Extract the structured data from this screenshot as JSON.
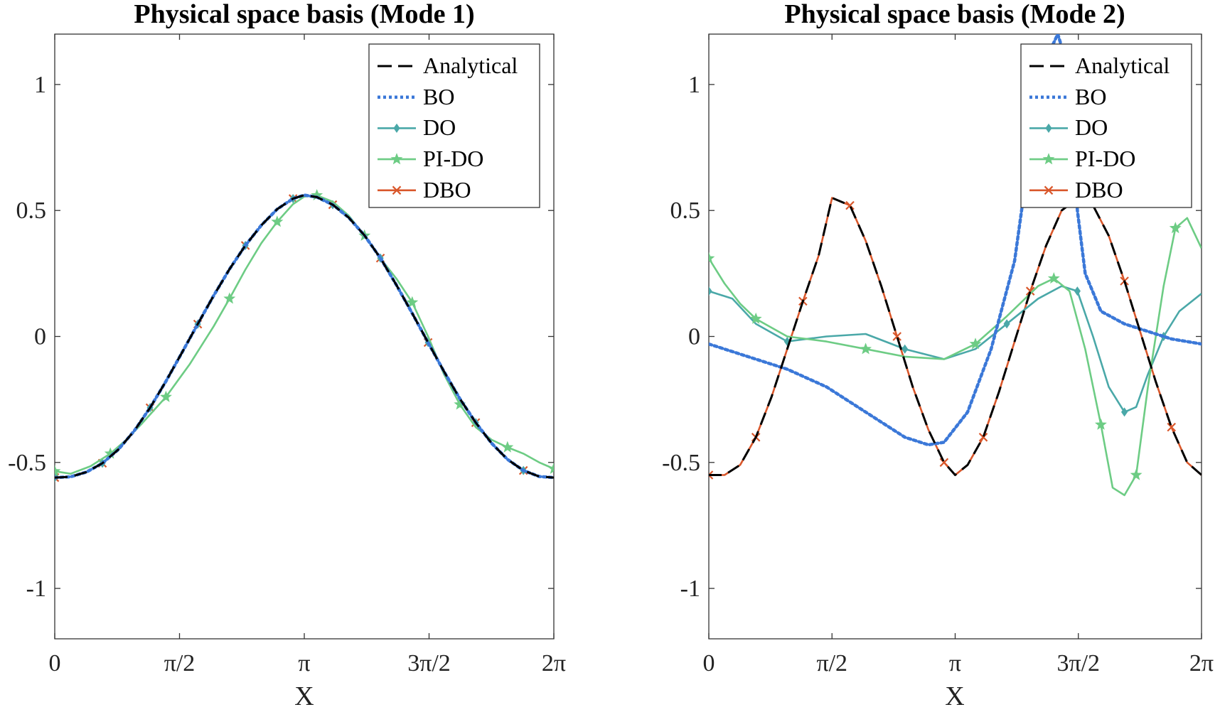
{
  "chart_data": [
    {
      "type": "line",
      "title": "Physical space basis (Mode 1)",
      "xlabel": "X",
      "ylabel": "",
      "xlim": [
        0,
        6.2832
      ],
      "ylim": [
        -1.2,
        1.2
      ],
      "xticks": [
        0,
        1.5708,
        3.1416,
        4.7124,
        6.2832
      ],
      "xtick_labels": [
        "0",
        "π/2",
        "π",
        "3π/2",
        "2π"
      ],
      "yticks": [
        -1,
        -0.5,
        0,
        0.5,
        1
      ],
      "ytick_labels": [
        "-1",
        "-0.5",
        "0",
        "0.5",
        "1"
      ],
      "legend_position": "top-right",
      "legend": [
        "Analytical",
        "BO",
        "DO",
        "PI-DO",
        "DBO"
      ],
      "series": [
        {
          "name": "Analytical",
          "color": "#000000",
          "style": "dashed",
          "marker": "none",
          "x": [
            0,
            0.2,
            0.4,
            0.6,
            0.8,
            1.0,
            1.2,
            1.4,
            1.6,
            1.8,
            2.0,
            2.2,
            2.4,
            2.6,
            2.8,
            3.0,
            3.1416,
            3.3,
            3.5,
            3.7,
            3.9,
            4.1,
            4.3,
            4.5,
            4.7,
            4.9,
            5.1,
            5.3,
            5.5,
            5.7,
            5.9,
            6.1,
            6.2832
          ],
          "y": [
            -0.56,
            -0.557,
            -0.538,
            -0.503,
            -0.449,
            -0.375,
            -0.283,
            -0.178,
            -0.065,
            0.049,
            0.162,
            0.267,
            0.361,
            0.441,
            0.505,
            0.547,
            0.561,
            0.553,
            0.523,
            0.472,
            0.401,
            0.311,
            0.205,
            0.092,
            -0.024,
            -0.139,
            -0.247,
            -0.342,
            -0.424,
            -0.488,
            -0.532,
            -0.556,
            -0.56
          ]
        },
        {
          "name": "BO",
          "color": "#3b78d8",
          "style": "dotted",
          "marker": "none",
          "x": [
            0,
            0.2,
            0.4,
            0.6,
            0.8,
            1.0,
            1.2,
            1.4,
            1.6,
            1.8,
            2.0,
            2.2,
            2.4,
            2.6,
            2.8,
            3.0,
            3.1416,
            3.3,
            3.5,
            3.7,
            3.9,
            4.1,
            4.3,
            4.5,
            4.7,
            4.9,
            5.1,
            5.3,
            5.5,
            5.7,
            5.9,
            6.1,
            6.2832
          ],
          "y": [
            -0.56,
            -0.557,
            -0.538,
            -0.503,
            -0.449,
            -0.375,
            -0.283,
            -0.178,
            -0.065,
            0.049,
            0.162,
            0.267,
            0.361,
            0.441,
            0.505,
            0.547,
            0.561,
            0.553,
            0.523,
            0.472,
            0.401,
            0.311,
            0.205,
            0.092,
            -0.024,
            -0.139,
            -0.247,
            -0.342,
            -0.424,
            -0.488,
            -0.532,
            -0.556,
            -0.56
          ]
        },
        {
          "name": "DO",
          "color": "#4aa8a8",
          "style": "solid",
          "marker": "diamond",
          "x": [
            0,
            0.2,
            0.4,
            0.6,
            0.8,
            1.0,
            1.2,
            1.4,
            1.6,
            1.8,
            2.0,
            2.2,
            2.4,
            2.6,
            2.8,
            3.0,
            3.1416,
            3.3,
            3.5,
            3.7,
            3.9,
            4.1,
            4.3,
            4.5,
            4.7,
            4.9,
            5.1,
            5.3,
            5.5,
            5.7,
            5.9,
            6.1,
            6.2832
          ],
          "y": [
            -0.56,
            -0.557,
            -0.538,
            -0.503,
            -0.449,
            -0.375,
            -0.283,
            -0.178,
            -0.065,
            0.049,
            0.162,
            0.267,
            0.361,
            0.441,
            0.505,
            0.547,
            0.561,
            0.553,
            0.523,
            0.472,
            0.401,
            0.311,
            0.205,
            0.092,
            -0.024,
            -0.139,
            -0.247,
            -0.342,
            -0.424,
            -0.488,
            -0.532,
            -0.556,
            -0.56
          ]
        },
        {
          "name": "PI-DO",
          "color": "#6dcc84",
          "style": "solid",
          "marker": "star",
          "x": [
            0,
            0.2,
            0.45,
            0.7,
            0.9,
            1.1,
            1.4,
            1.7,
            2.0,
            2.2,
            2.4,
            2.6,
            2.8,
            3.0,
            3.1416,
            3.3,
            3.5,
            3.7,
            3.9,
            4.1,
            4.3,
            4.5,
            4.7,
            4.9,
            5.1,
            5.3,
            5.5,
            5.7,
            5.9,
            6.1,
            6.2832
          ],
          "y": [
            -0.535,
            -0.545,
            -0.515,
            -0.465,
            -0.41,
            -0.345,
            -0.24,
            -0.11,
            0.04,
            0.15,
            0.265,
            0.37,
            0.455,
            0.525,
            0.555,
            0.56,
            0.535,
            0.48,
            0.4,
            0.31,
            0.23,
            0.135,
            0.0,
            -0.15,
            -0.27,
            -0.36,
            -0.41,
            -0.44,
            -0.465,
            -0.5,
            -0.525
          ]
        },
        {
          "name": "DBO",
          "color": "#d9572b",
          "style": "solid",
          "marker": "x",
          "x": [
            0,
            0.2,
            0.4,
            0.6,
            0.8,
            1.0,
            1.2,
            1.4,
            1.6,
            1.8,
            2.0,
            2.2,
            2.4,
            2.6,
            2.8,
            3.0,
            3.1416,
            3.3,
            3.5,
            3.7,
            3.9,
            4.1,
            4.3,
            4.5,
            4.7,
            4.9,
            5.1,
            5.3,
            5.5,
            5.7,
            5.9,
            6.1,
            6.2832
          ],
          "y": [
            -0.56,
            -0.557,
            -0.538,
            -0.503,
            -0.449,
            -0.375,
            -0.283,
            -0.178,
            -0.065,
            0.049,
            0.162,
            0.267,
            0.361,
            0.441,
            0.505,
            0.547,
            0.561,
            0.553,
            0.523,
            0.472,
            0.401,
            0.311,
            0.205,
            0.092,
            -0.024,
            -0.139,
            -0.247,
            -0.342,
            -0.424,
            -0.488,
            -0.532,
            -0.556,
            -0.56
          ]
        }
      ]
    },
    {
      "type": "line",
      "title": "Physical space basis (Mode 2)",
      "xlabel": "X",
      "ylabel": "",
      "xlim": [
        0,
        6.2832
      ],
      "ylim": [
        -1.2,
        1.2
      ],
      "xticks": [
        0,
        1.5708,
        3.1416,
        4.7124,
        6.2832
      ],
      "xtick_labels": [
        "0",
        "π/2",
        "π",
        "3π/2",
        "2π"
      ],
      "yticks": [
        -1,
        -0.5,
        0,
        0.5,
        1
      ],
      "ytick_labels": [
        "-1",
        "-0.5",
        "0",
        "0.5",
        "1"
      ],
      "legend_position": "top-right",
      "legend": [
        "Analytical",
        "BO",
        "DO",
        "PI-DO",
        "DBO"
      ],
      "series": [
        {
          "name": "Analytical",
          "color": "#000000",
          "style": "dashed",
          "marker": "none",
          "x": [
            0,
            0.2,
            0.4,
            0.6,
            0.8,
            1.0,
            1.2,
            1.4,
            1.5708,
            1.8,
            2.0,
            2.2,
            2.4,
            2.6,
            2.8,
            3.0,
            3.1416,
            3.3,
            3.5,
            3.7,
            3.9,
            4.1,
            4.3,
            4.5,
            4.7124,
            4.9,
            5.1,
            5.3,
            5.5,
            5.7,
            5.9,
            6.1,
            6.2832
          ],
          "y": [
            -0.55,
            -0.55,
            -0.51,
            -0.4,
            -0.24,
            -0.05,
            0.14,
            0.32,
            0.55,
            0.52,
            0.38,
            0.2,
            0.0,
            -0.2,
            -0.37,
            -0.5,
            -0.55,
            -0.51,
            -0.4,
            -0.22,
            -0.02,
            0.18,
            0.36,
            0.5,
            0.55,
            0.52,
            0.4,
            0.22,
            0.02,
            -0.18,
            -0.36,
            -0.5,
            -0.55
          ]
        },
        {
          "name": "BO",
          "color": "#3b78d8",
          "style": "dotted",
          "marker": "none",
          "x": [
            0,
            0.5,
            1.0,
            1.5,
            2.0,
            2.5,
            2.8,
            3.0,
            3.3,
            3.6,
            3.9,
            4.1,
            4.3,
            4.45,
            4.6,
            4.7,
            4.8,
            5.0,
            5.3,
            5.6,
            5.9,
            6.2832
          ],
          "y": [
            -0.03,
            -0.08,
            -0.13,
            -0.2,
            -0.3,
            -0.4,
            -0.43,
            -0.42,
            -0.3,
            -0.05,
            0.3,
            0.75,
            1.1,
            1.2,
            1.05,
            0.5,
            0.25,
            0.1,
            0.05,
            0.02,
            -0.01,
            -0.03
          ]
        },
        {
          "name": "DO",
          "color": "#4aa8a8",
          "style": "solid",
          "marker": "diamond",
          "x": [
            0,
            0.3,
            0.6,
            1.0,
            1.5,
            2.0,
            2.5,
            3.0,
            3.4,
            3.8,
            4.2,
            4.5,
            4.7,
            4.9,
            5.1,
            5.3,
            5.45,
            5.6,
            5.8,
            6.0,
            6.2832
          ],
          "y": [
            0.18,
            0.15,
            0.05,
            -0.02,
            0.0,
            0.01,
            -0.05,
            -0.09,
            -0.05,
            0.05,
            0.15,
            0.2,
            0.18,
            0.0,
            -0.2,
            -0.3,
            -0.28,
            -0.15,
            0.0,
            0.1,
            0.17
          ]
        },
        {
          "name": "PI-DO",
          "color": "#6dcc84",
          "style": "solid",
          "marker": "star",
          "x": [
            0,
            0.2,
            0.4,
            0.6,
            1.0,
            1.5,
            2.0,
            2.5,
            3.0,
            3.4,
            3.8,
            4.2,
            4.4,
            4.6,
            4.8,
            5.0,
            5.15,
            5.3,
            5.45,
            5.6,
            5.8,
            5.95,
            6.1,
            6.2832
          ],
          "y": [
            0.31,
            0.21,
            0.13,
            0.07,
            0.0,
            -0.02,
            -0.05,
            -0.08,
            -0.09,
            -0.03,
            0.08,
            0.2,
            0.23,
            0.18,
            -0.05,
            -0.35,
            -0.6,
            -0.63,
            -0.55,
            -0.2,
            0.2,
            0.43,
            0.47,
            0.35
          ]
        },
        {
          "name": "DBO",
          "color": "#d9572b",
          "style": "solid",
          "marker": "x",
          "x": [
            0,
            0.2,
            0.4,
            0.6,
            0.8,
            1.0,
            1.2,
            1.4,
            1.5708,
            1.8,
            2.0,
            2.2,
            2.4,
            2.6,
            2.8,
            3.0,
            3.1416,
            3.3,
            3.5,
            3.7,
            3.9,
            4.1,
            4.3,
            4.5,
            4.7124,
            4.9,
            5.1,
            5.3,
            5.5,
            5.7,
            5.9,
            6.1,
            6.2832
          ],
          "y": [
            -0.55,
            -0.55,
            -0.51,
            -0.4,
            -0.24,
            -0.05,
            0.14,
            0.32,
            0.55,
            0.52,
            0.38,
            0.2,
            0.0,
            -0.2,
            -0.37,
            -0.5,
            -0.55,
            -0.51,
            -0.4,
            -0.22,
            -0.02,
            0.18,
            0.36,
            0.5,
            0.55,
            0.52,
            0.4,
            0.22,
            0.02,
            -0.18,
            -0.36,
            -0.5,
            -0.55
          ]
        }
      ]
    }
  ]
}
